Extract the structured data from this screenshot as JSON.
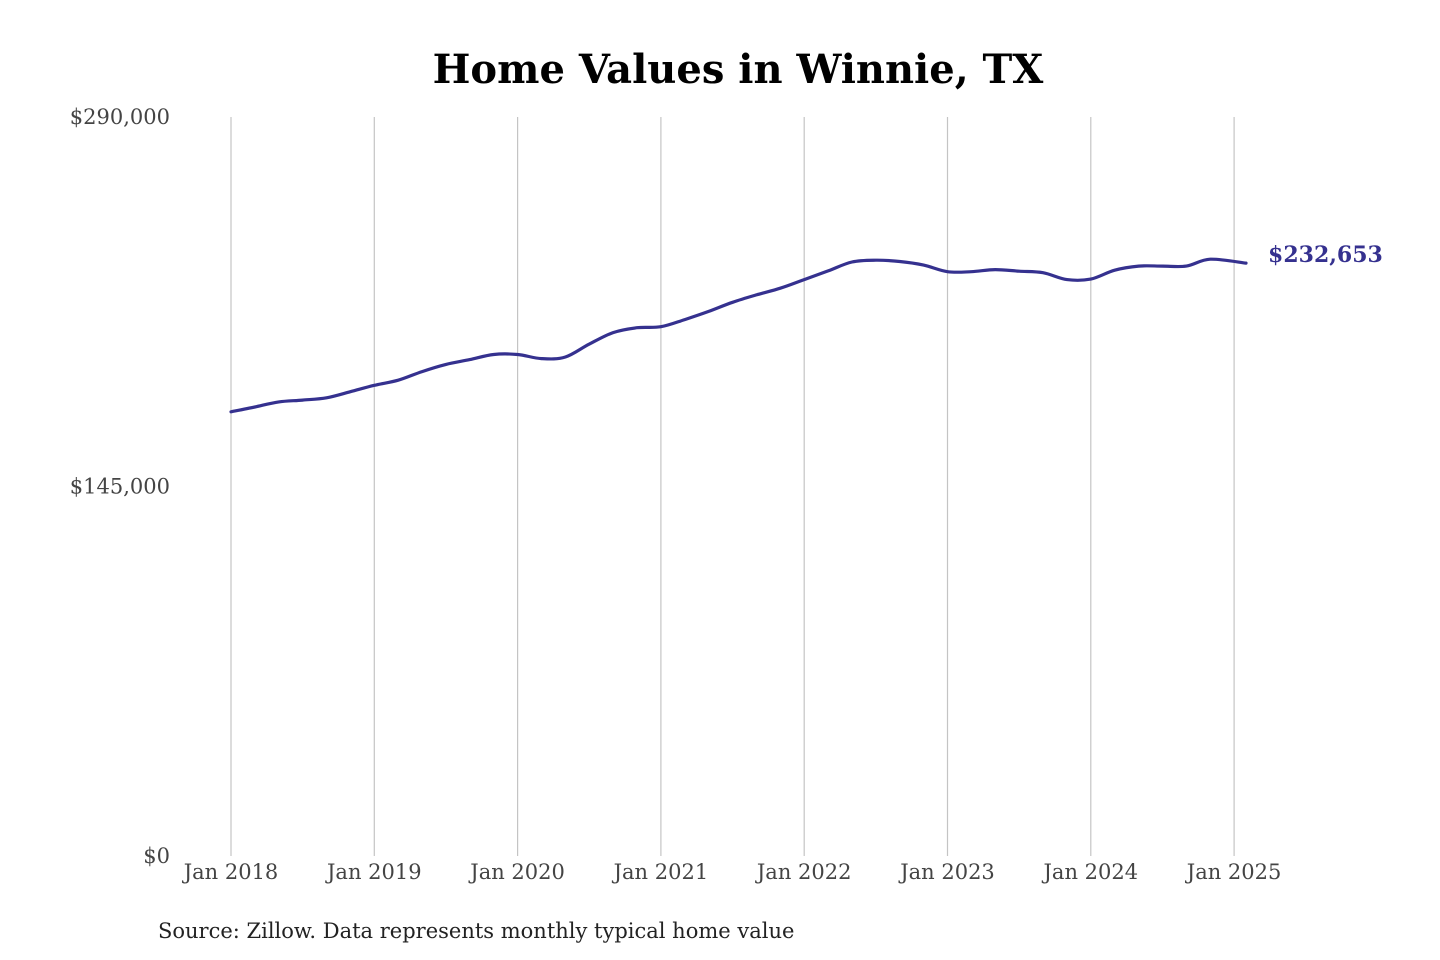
{
  "chart_data": {
    "type": "line",
    "title": "Home Values in Winnie, TX",
    "source": "Source: Zillow. Data represents monthly typical home value",
    "xlabel": "",
    "ylabel": "",
    "ylim": [
      0,
      290000
    ],
    "yticks": [
      {
        "value": 0,
        "label": "$0"
      },
      {
        "value": 145000,
        "label": "$145,000"
      },
      {
        "value": 290000,
        "label": "$290,000"
      }
    ],
    "xticks": [
      {
        "value": "2018-01",
        "label": "Jan 2018"
      },
      {
        "value": "2019-01",
        "label": "Jan 2019"
      },
      {
        "value": "2020-01",
        "label": "Jan 2020"
      },
      {
        "value": "2021-01",
        "label": "Jan 2021"
      },
      {
        "value": "2022-01",
        "label": "Jan 2022"
      },
      {
        "value": "2023-01",
        "label": "Jan 2023"
      },
      {
        "value": "2024-01",
        "label": "Jan 2024"
      },
      {
        "value": "2025-01",
        "label": "Jan 2025"
      }
    ],
    "xlim": [
      "2018-01",
      "2025-02"
    ],
    "grid": "vertical",
    "line_color": "#35318f",
    "end_label": "$232,653",
    "series": [
      {
        "points": [
          [
            "2018-01",
            174300
          ],
          [
            "2018-03",
            176200
          ],
          [
            "2018-05",
            178200
          ],
          [
            "2018-07",
            178900
          ],
          [
            "2018-09",
            179800
          ],
          [
            "2018-11",
            182200
          ],
          [
            "2019-01",
            184700
          ],
          [
            "2019-03",
            186700
          ],
          [
            "2019-05",
            190100
          ],
          [
            "2019-07",
            192900
          ],
          [
            "2019-09",
            194800
          ],
          [
            "2019-11",
            196800
          ],
          [
            "2020-01",
            196800
          ],
          [
            "2020-03",
            195200
          ],
          [
            "2020-05",
            195800
          ],
          [
            "2020-07",
            200900
          ],
          [
            "2020-09",
            205400
          ],
          [
            "2020-11",
            207300
          ],
          [
            "2021-01",
            207700
          ],
          [
            "2021-03",
            210500
          ],
          [
            "2021-05",
            213700
          ],
          [
            "2021-07",
            217300
          ],
          [
            "2021-09",
            220200
          ],
          [
            "2021-11",
            222800
          ],
          [
            "2022-01",
            226200
          ],
          [
            "2022-03",
            229600
          ],
          [
            "2022-05",
            233100
          ],
          [
            "2022-07",
            233800
          ],
          [
            "2022-09",
            233300
          ],
          [
            "2022-11",
            231900
          ],
          [
            "2023-01",
            229300
          ],
          [
            "2023-03",
            229300
          ],
          [
            "2023-05",
            230100
          ],
          [
            "2023-07",
            229500
          ],
          [
            "2023-09",
            228900
          ],
          [
            "2023-11",
            226200
          ],
          [
            "2024-01",
            226400
          ],
          [
            "2024-03",
            229900
          ],
          [
            "2024-05",
            231500
          ],
          [
            "2024-07",
            231500
          ],
          [
            "2024-09",
            231500
          ],
          [
            "2024-11",
            234200
          ],
          [
            "2025-02",
            232653
          ]
        ]
      }
    ]
  }
}
